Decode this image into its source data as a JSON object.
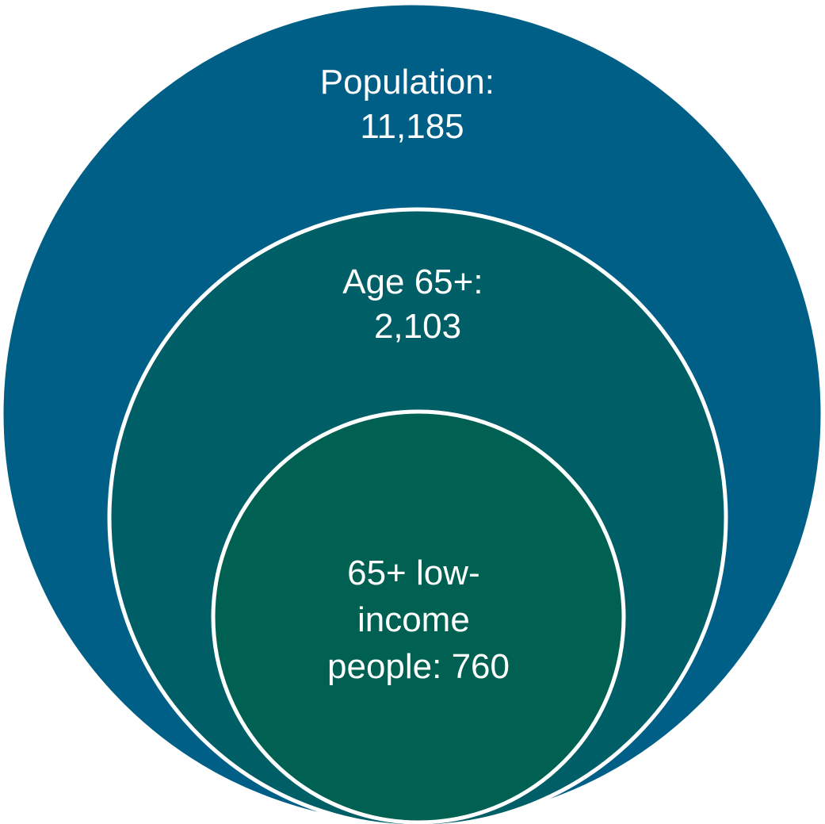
{
  "diagram": {
    "layers": [
      {
        "lines": [
          "Population:",
          "11,185"
        ],
        "color": "#005F86"
      },
      {
        "lines": [
          "Age 65+:",
          "2,103"
        ],
        "color": "#005E66"
      },
      {
        "lines": [
          "65+ low-",
          "income",
          "people: 760"
        ],
        "color": "#006152"
      }
    ],
    "border_color": "#FFFFFF"
  }
}
